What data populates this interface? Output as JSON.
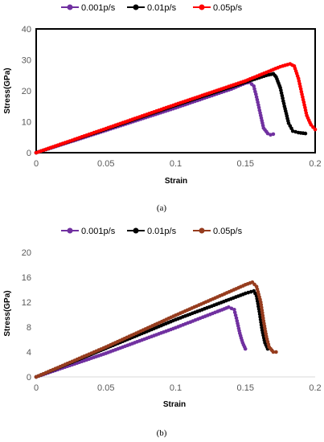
{
  "chart_data": [
    {
      "type": "line",
      "caption": "(a)",
      "xlabel": "Strain",
      "ylabel": "Stress(GPa)",
      "xlim": [
        0,
        0.2
      ],
      "ylim": [
        0,
        40
      ],
      "xticks": [
        "0",
        "0.05",
        "0.1",
        "0.15",
        "0.2"
      ],
      "yticks": [
        "0",
        "10",
        "20",
        "30",
        "40"
      ],
      "grid": false,
      "legend_position": "top",
      "series": [
        {
          "name": "0.001p/s",
          "color": "#7030A0",
          "x": [
            0,
            0.05,
            0.1,
            0.14,
            0.15,
            0.153,
            0.156,
            0.158,
            0.161,
            0.163,
            0.166,
            0.168,
            0.17
          ],
          "y": [
            0,
            7.2,
            14.5,
            20.6,
            22.5,
            22.8,
            21.5,
            18,
            12,
            8,
            6.2,
            5.8,
            6
          ]
        },
        {
          "name": "0.01p/s",
          "color": "#000000",
          "x": [
            0,
            0.05,
            0.1,
            0.15,
            0.165,
            0.17,
            0.172,
            0.175,
            0.178,
            0.181,
            0.184,
            0.188,
            0.193
          ],
          "y": [
            0,
            7.6,
            15.3,
            22.8,
            25,
            25.5,
            24.5,
            21,
            15,
            9.5,
            7,
            6.5,
            6.2
          ]
        },
        {
          "name": "0.05p/s",
          "color": "#FF0000",
          "x": [
            0,
            0.05,
            0.1,
            0.15,
            0.175,
            0.182,
            0.185,
            0.188,
            0.191,
            0.194,
            0.197,
            0.2
          ],
          "y": [
            0,
            7.8,
            15.6,
            23.2,
            27.8,
            28.7,
            28,
            24,
            18,
            12,
            9,
            7.5
          ]
        }
      ]
    },
    {
      "type": "line",
      "caption": "(b)",
      "xlabel": "Strain",
      "ylabel": "Stress(GPa)",
      "xlim": [
        0,
        0.2
      ],
      "ylim": [
        0,
        20
      ],
      "xticks": [
        "0",
        "0.05",
        "0.1",
        "0.15",
        "0.2"
      ],
      "yticks": [
        "0",
        "4",
        "8",
        "12",
        "16",
        "20"
      ],
      "grid": false,
      "legend_position": "top",
      "series": [
        {
          "name": "0.001p/s",
          "color": "#7030A0",
          "x": [
            0,
            0.05,
            0.1,
            0.13,
            0.138,
            0.142,
            0.144,
            0.146,
            0.148,
            0.15
          ],
          "y": [
            0,
            3.8,
            7.9,
            10.5,
            11.2,
            10.8,
            9,
            7,
            5.5,
            4.5
          ]
        },
        {
          "name": "0.01p/s",
          "color": "#000000",
          "x": [
            0,
            0.05,
            0.1,
            0.15,
            0.156,
            0.158,
            0.16,
            0.162,
            0.164,
            0.166
          ],
          "y": [
            0,
            4.6,
            9.2,
            13.4,
            13.8,
            13,
            10.5,
            7.5,
            5.5,
            4.5
          ]
        },
        {
          "name": "0.05p/s",
          "color": "#963C1E",
          "x": [
            0,
            0.05,
            0.1,
            0.15,
            0.155,
            0.158,
            0.161,
            0.163,
            0.165,
            0.167,
            0.17,
            0.172
          ],
          "y": [
            0,
            4.8,
            9.9,
            14.8,
            15.2,
            14.5,
            12,
            9,
            6.5,
            4.8,
            4,
            4
          ]
        }
      ]
    }
  ]
}
